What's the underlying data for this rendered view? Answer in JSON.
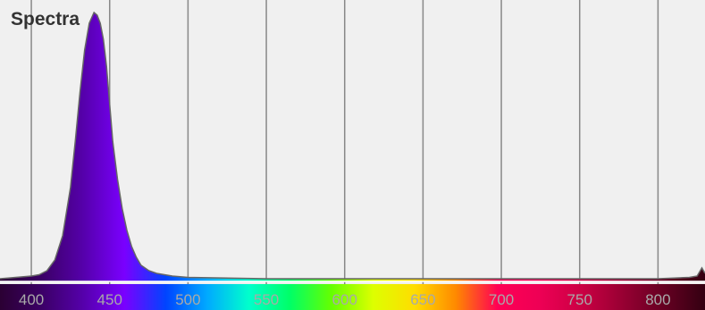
{
  "chart_data": {
    "type": "area",
    "title": "Spectra",
    "xlabel": "",
    "ylabel": "",
    "xlim": [
      380,
      830
    ],
    "ylim": [
      0,
      1
    ],
    "grid": true,
    "x_ticks": [
      400,
      450,
      500,
      550,
      600,
      650,
      700,
      750,
      800
    ],
    "tick_labels": [
      "400",
      "450",
      "500",
      "550",
      "600",
      "650",
      "700",
      "750",
      "800"
    ],
    "series": [
      {
        "x": [
          380,
          390,
          400,
          405,
          410,
          415,
          420,
          425,
          428,
          431,
          434,
          437,
          440,
          442,
          444,
          446,
          448,
          450,
          452,
          455,
          458,
          461,
          464,
          467,
          470,
          475,
          480,
          490,
          500,
          550,
          600,
          650,
          700,
          750,
          800,
          820,
          825,
          828,
          830
        ],
        "y": [
          0.01,
          0.015,
          0.02,
          0.025,
          0.04,
          0.08,
          0.17,
          0.35,
          0.52,
          0.7,
          0.86,
          0.96,
          1.0,
          0.99,
          0.96,
          0.9,
          0.8,
          0.66,
          0.52,
          0.38,
          0.27,
          0.19,
          0.13,
          0.09,
          0.06,
          0.04,
          0.03,
          0.02,
          0.015,
          0.01,
          0.01,
          0.01,
          0.01,
          0.01,
          0.01,
          0.015,
          0.02,
          0.05,
          0.03
        ]
      }
    ],
    "colors": {
      "plot_background": "#f0f0f0",
      "grid": "#888888",
      "area_stroke": "#666666",
      "baseline": "#ffffff"
    },
    "spectrum_gradient": [
      "#2b0033",
      "#3b0066",
      "#5500aa",
      "#7a00ff",
      "#0044ff",
      "#00aaff",
      "#00ffcc",
      "#00ff66",
      "#66ff00",
      "#ddff00",
      "#ffdd00",
      "#ff8800",
      "#ff0055",
      "#ee0055",
      "#cc0044",
      "#990033",
      "#660022",
      "#330011"
    ]
  }
}
